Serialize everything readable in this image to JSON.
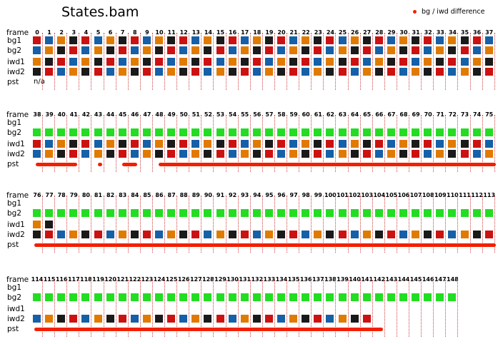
{
  "title": "States.bam",
  "legend": {
    "label": "bg / iwd difference",
    "color": "#ee2200"
  },
  "row_labels": [
    "frame",
    "bg1",
    "bg2",
    "iwd1",
    "iwd2",
    "pst"
  ],
  "pst_block1": "n/a",
  "blocks": [
    {
      "start": 0,
      "end": 37
    },
    {
      "start": 38,
      "end": 75
    },
    {
      "start": 76,
      "end": 113
    },
    {
      "start": 114,
      "end": 148
    }
  ]
}
